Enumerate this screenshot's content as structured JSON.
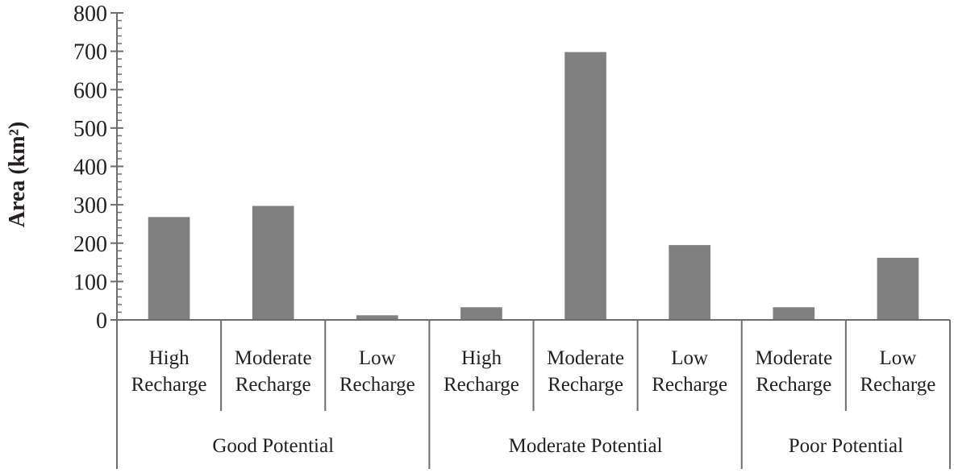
{
  "chart_data": {
    "type": "bar",
    "ylabel": "Area (km²)",
    "ylim": [
      0,
      800
    ],
    "yticks": [
      0,
      100,
      200,
      300,
      400,
      500,
      600,
      700,
      800
    ],
    "groups": [
      {
        "name": "Good Potential",
        "categories": [
          {
            "label": [
              "High",
              "Recharge"
            ],
            "value": 268
          },
          {
            "label": [
              "Moderate",
              "Recharge"
            ],
            "value": 297
          },
          {
            "label": [
              "Low",
              "Recharge"
            ],
            "value": 12
          }
        ]
      },
      {
        "name": "Moderate Potential",
        "categories": [
          {
            "label": [
              "High",
              "Recharge"
            ],
            "value": 33
          },
          {
            "label": [
              "Moderate",
              "Recharge"
            ],
            "value": 698
          },
          {
            "label": [
              "Low",
              "Recharge"
            ],
            "value": 195
          }
        ]
      },
      {
        "name": "Poor Potential",
        "categories": [
          {
            "label": [
              "Moderate",
              "Recharge"
            ],
            "value": 33
          },
          {
            "label": [
              "Low",
              "Recharge"
            ],
            "value": 162
          }
        ]
      }
    ],
    "colors": {
      "bar": "#808080",
      "axis": "#6d6e71",
      "text": "#231f20"
    },
    "grid": false,
    "legend": "none"
  }
}
